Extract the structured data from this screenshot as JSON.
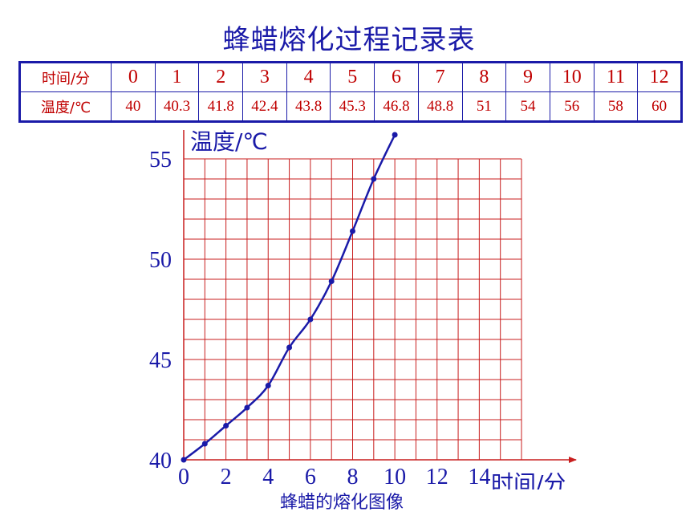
{
  "title": "蜂蜡熔化过程记录表",
  "table": {
    "time_header": "时间/分",
    "temp_header": "温度/℃",
    "times": [
      "0",
      "1",
      "2",
      "3",
      "4",
      "5",
      "6",
      "7",
      "8",
      "9",
      "10",
      "11",
      "12"
    ],
    "temps": [
      "40",
      "40.3",
      "41.8",
      "42.4",
      "43.8",
      "45.3",
      "46.8",
      "48.8",
      "51",
      "54",
      "56",
      "58",
      "60"
    ]
  },
  "chart_data": {
    "type": "line",
    "title": "蜂蜡的熔化图像",
    "xlabel": "时间/分",
    "ylabel": "温度/℃",
    "xlim": [
      0,
      16
    ],
    "ylim": [
      40,
      55
    ],
    "xticks": [
      "0",
      "2",
      "4",
      "6",
      "8",
      "10",
      "12",
      "14"
    ],
    "yticks": [
      "40",
      "45",
      "50",
      "55"
    ],
    "grid": true,
    "x": [
      0,
      1,
      2,
      3,
      4,
      5,
      6,
      7,
      8,
      9,
      10
    ],
    "y": [
      40,
      40.8,
      41.7,
      42.6,
      43.7,
      45.6,
      47.0,
      48.9,
      51.4,
      54.0,
      56.2
    ],
    "colors": {
      "grid": "#c81e1e",
      "curve": "#1a1aa8",
      "axes": "#c81e1e",
      "text": "#1a1aa8"
    }
  }
}
